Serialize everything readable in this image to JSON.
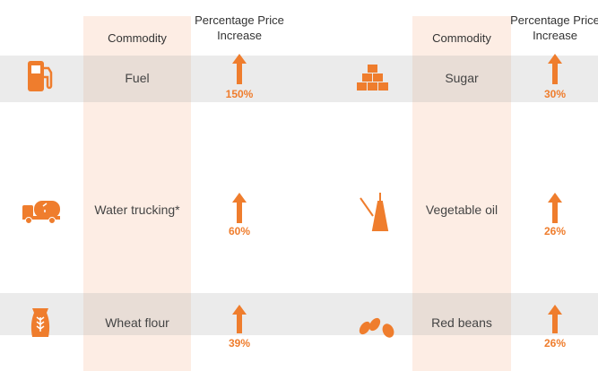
{
  "tables": [
    {
      "headers": [
        "Commodity",
        "Percentage Price Increase"
      ],
      "rows": [
        [
          "Fuel",
          "150%"
        ],
        [
          "Water trucking*",
          "60%"
        ],
        [
          "Wheat flour",
          "39%"
        ]
      ]
    },
    {
      "headers": [
        "Commodity",
        "Percentage Price Increase"
      ],
      "rows": [
        [
          "Sugar",
          "30%"
        ],
        [
          "Vegetable oil",
          "26%"
        ],
        [
          "Red beans",
          "26%"
        ]
      ]
    }
  ]
}
